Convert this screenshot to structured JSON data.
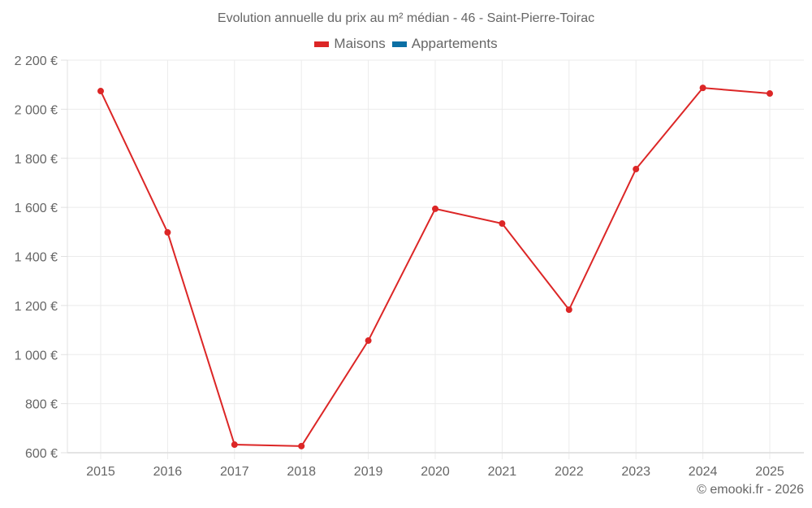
{
  "chart_data": {
    "type": "line",
    "title": "Evolution annuelle du prix au m² médian - 46 - Saint-Pierre-Toirac",
    "xlabel": "",
    "ylabel": "",
    "categories": [
      "2015",
      "2016",
      "2017",
      "2018",
      "2019",
      "2020",
      "2021",
      "2022",
      "2023",
      "2024",
      "2025"
    ],
    "series": [
      {
        "name": "Maisons",
        "color": "#dc2626",
        "values": [
          2074,
          1498,
          633,
          627,
          1057,
          1594,
          1534,
          1183,
          1756,
          2087,
          2064
        ]
      },
      {
        "name": "Appartements",
        "color": "#0b6fa4",
        "values": []
      }
    ],
    "ylim": [
      600,
      2200
    ],
    "yticks": [
      600,
      800,
      1000,
      1200,
      1400,
      1600,
      1800,
      2000,
      2200
    ],
    "ytick_labels": [
      "600 €",
      "800 €",
      "1 000 €",
      "1 200 €",
      "1 400 €",
      "1 600 €",
      "1 800 €",
      "2 000 €",
      "2 200 €"
    ],
    "grid": true,
    "legend_position": "top"
  },
  "legend": {
    "items": [
      {
        "label": "Maisons",
        "color": "#dc2626"
      },
      {
        "label": "Appartements",
        "color": "#0b6fa4"
      }
    ]
  },
  "credit": "© emooki.fr - 2026"
}
